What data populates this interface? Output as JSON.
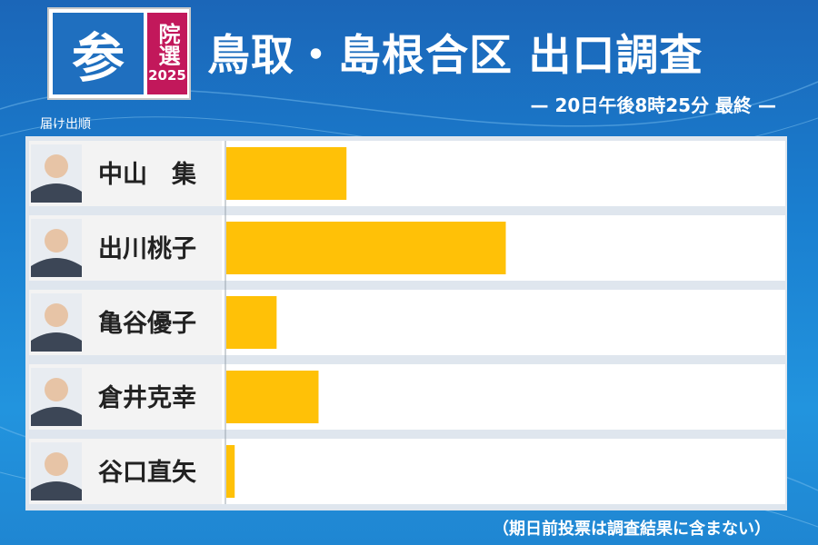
{
  "logo": {
    "main": "参",
    "side_chars": "院選",
    "year": "2025"
  },
  "title": "鳥取・島根合区 出口調査",
  "subtitle": "— 20日午後8時25分 最終 —",
  "order_label": "届け出順",
  "footnote": "（期日前投票は調査結果に含まない）",
  "colors": {
    "bar": "#FFC107",
    "row_bg": "#ffffff",
    "label_bg": "#f3f3f3"
  },
  "chart_data": {
    "type": "bar",
    "orientation": "horizontal",
    "title": "鳥取・島根合区 出口調査",
    "subtitle": "— 20日午後8時25分 最終 —",
    "categories": [
      "中山　集",
      "出川桃子",
      "亀谷優子",
      "倉井克幸",
      "谷口直矢"
    ],
    "values": [
      21.5,
      50,
      9,
      16.5,
      1.5
    ],
    "xlim": [
      0,
      100
    ],
    "value_axis_shown": false,
    "grid": false,
    "legend": "none"
  }
}
